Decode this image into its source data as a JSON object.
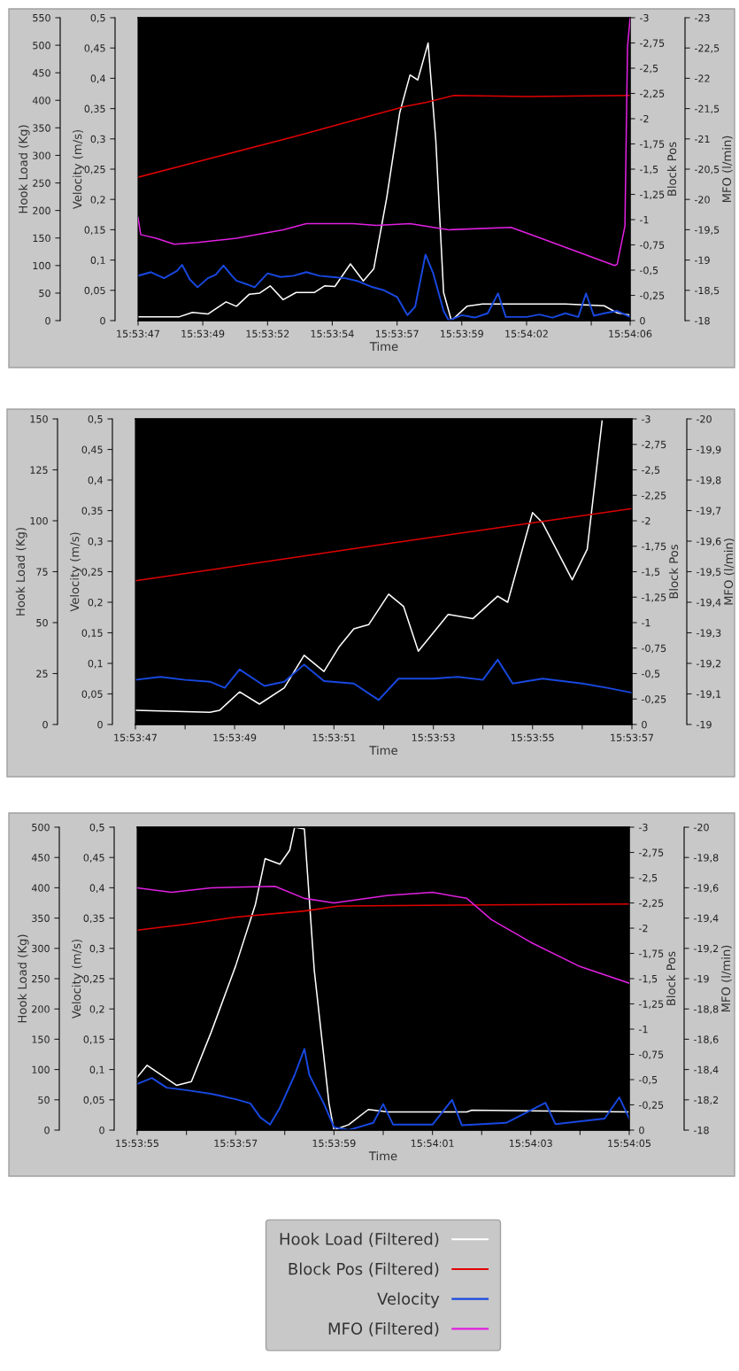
{
  "chart_data": [
    {
      "type": "line",
      "xlabel": "Time",
      "ylabel": "Hook Load (Kg)",
      "y2label": "Velocity (m/s)",
      "y3label": "Block Pos",
      "xlim": [
        15.896389,
        15.901667
      ],
      "xticks": [
        {
          "value": 15.896389,
          "label": "15:53:47"
        },
        {
          "value": 15.897083,
          "label": "15:53:49"
        },
        {
          "value": 15.897778,
          "label": "15:53:52"
        },
        {
          "value": 15.898472,
          "label": "15:53:54"
        },
        {
          "value": 15.899167,
          "label": "15:53:57"
        },
        {
          "value": 15.899861,
          "label": "15:53:59"
        },
        {
          "value": 15.900556,
          "label": "15:54:02"
        },
        {
          "value": 15.90125,
          "label": null
        },
        {
          "value": 15.901667,
          "label": "15:54:06"
        }
      ],
      "ylim": [
        0,
        550
      ],
      "yticks": [
        0,
        50,
        100,
        150,
        200,
        250,
        300,
        350,
        400,
        450,
        500,
        550
      ],
      "y2lim": [
        0,
        0.5
      ],
      "y2ticks": [
        0,
        {
          "value": 0.05,
          "label": "0,05"
        },
        {
          "value": 0.1,
          "label": "0,1"
        },
        {
          "value": 0.15,
          "label": "0,15"
        },
        {
          "value": 0.2,
          "label": "0,2"
        },
        {
          "value": 0.25,
          "label": "0,25"
        },
        {
          "value": 0.3,
          "label": "0,3"
        },
        {
          "value": 0.35,
          "label": "0,35"
        },
        {
          "value": 0.4,
          "label": "0,4"
        },
        {
          "value": 0.45,
          "label": "0,45"
        },
        {
          "value": 0.5,
          "label": "0,5"
        }
      ],
      "y3lim": [
        0,
        -3
      ],
      "y3ticks": [
        0,
        {
          "value": -0.25,
          "label": "-0,25"
        },
        {
          "value": -0.5,
          "label": "-0,5"
        },
        {
          "value": -0.75,
          "label": "-0,75"
        },
        {
          "value": -1,
          "label": "-1"
        },
        {
          "value": -1.25,
          "label": "-1,25"
        },
        {
          "value": -1.5,
          "label": "-1,5"
        },
        {
          "value": -1.75,
          "label": "-1,75"
        },
        {
          "value": -2,
          "label": "-2"
        },
        {
          "value": -2.25,
          "label": "-2,25"
        },
        {
          "value": -2.5,
          "label": "-2,5"
        },
        {
          "value": -2.75,
          "label": "-2,75"
        },
        {
          "value": -3,
          "label": "-3"
        }
      ],
      "series": [
        {
          "axis": "y3",
          "color": "#e00000",
          "x": [
            15.896389,
            15.897222,
            15.898056,
            15.898889,
            15.89925,
            15.899472,
            15.899778,
            15.900556,
            15.901667
          ],
          "values": [
            -1.42,
            -1.62,
            -1.82,
            -2.03,
            -2.12,
            -2.16,
            -2.23,
            -2.22,
            -2.23
          ]
        },
        {
          "axis": "y2",
          "color": "#1848e0",
          "x": [
            15.896389,
            15.896528,
            15.896667,
            15.896806,
            15.896861,
            15.896944,
            15.897027,
            15.897138,
            15.897222,
            15.897305,
            15.897389,
            15.897444,
            15.897556,
            15.897639,
            15.897778,
            15.897917,
            15.898056,
            15.898194,
            15.898333,
            15.898472,
            15.898611,
            15.89875,
            15.898889,
            15.899028,
            15.899167,
            15.899278,
            15.899361,
            15.899472,
            15.899555,
            15.899666,
            15.899722,
            15.899861,
            15.9,
            15.900139,
            15.90025,
            15.900333,
            15.900556,
            15.900694,
            15.900833,
            15.900972,
            15.901111,
            15.901194,
            15.901278,
            15.901389,
            15.901528,
            15.901667
          ],
          "values": [
            0.074,
            0.08,
            0.07,
            0.082,
            0.092,
            0.068,
            0.055,
            0.07,
            0.076,
            0.091,
            0.075,
            0.066,
            0.06,
            0.055,
            0.078,
            0.072,
            0.074,
            0.08,
            0.074,
            0.072,
            0.07,
            0.065,
            0.056,
            0.05,
            0.039,
            0.009,
            0.023,
            0.109,
            0.078,
            0.016,
            0,
            0.009,
            0.005,
            0.012,
            0.045,
            0.006,
            0.006,
            0.01,
            0.005,
            0.012,
            0.006,
            0.045,
            0.008,
            0.012,
            0.016,
            0.006
          ]
        },
        {
          "color": "#ffffff",
          "x": [
            15.896389,
            15.896834,
            15.896972,
            15.897138,
            15.897333,
            15.897444,
            15.897583,
            15.897694,
            15.897806,
            15.897945,
            15.898084,
            15.898278,
            15.898389,
            15.8985,
            15.898667,
            15.898805,
            15.898917,
            15.899056,
            15.899195,
            15.899306,
            15.899389,
            15.8995,
            15.899583,
            15.899666,
            15.89975,
            15.899916,
            15.900083,
            15.900972,
            15.901389,
            15.901528,
            15.901667
          ],
          "values": [
            7,
            7,
            15,
            12,
            34,
            26,
            48,
            50,
            63,
            38,
            51,
            51,
            63,
            62,
            103,
            72,
            94,
            223,
            377,
            446,
            437,
            504,
            326,
            51,
            0,
            26,
            30,
            30,
            27,
            14,
            10
          ]
        }
      ]
    },
    {
      "type": "line",
      "tick_labels": "y",
      "ylabel": "MFO (l/min)",
      "xlim": [
        15.896389,
        15.901667
      ],
      "ylim": [
        -18,
        -23
      ],
      "yticks": [
        {
          "value": -18,
          "label": "-18"
        },
        {
          "value": -18.5,
          "label": "-18,5"
        },
        {
          "value": -19,
          "label": "-19"
        },
        {
          "value": -19.5,
          "label": "-19,5"
        },
        {
          "value": -20,
          "label": "-20"
        },
        {
          "value": -20.5,
          "label": "-20,5"
        },
        {
          "value": -21,
          "label": "-21"
        },
        {
          "value": -21.5,
          "label": "-21,5"
        },
        {
          "value": -22,
          "label": "-22"
        },
        {
          "value": -22.5,
          "label": "-22,5"
        },
        {
          "value": -23,
          "label": "-23"
        }
      ],
      "series": [
        {
          "color": "#e020e0",
          "x": [
            15.896389,
            15.896417,
            15.896583,
            15.896778,
            15.897027,
            15.897444,
            15.897945,
            15.898194,
            15.898694,
            15.898945,
            15.899306,
            15.899722,
            15.900389,
            15.900639,
            15.9015,
            15.901528,
            15.901611,
            15.901639,
            15.901667
          ],
          "values": [
            -19.7,
            -19.42,
            -19.36,
            -19.26,
            -19.29,
            -19.36,
            -19.5,
            -19.6,
            -19.6,
            -19.57,
            -19.6,
            -19.5,
            -19.54,
            -19.4,
            -18.91,
            -18.93,
            -19.56,
            -22.52,
            -23
          ]
        }
      ]
    },
    {
      "type": "line",
      "xlabel": "Time",
      "ylabel": "Hook Load (Kg)",
      "y2label": "Velocity (m/s)",
      "y3label": "Block Pos",
      "xlim": [
        15.896389,
        15.899167
      ],
      "xticks": [
        {
          "value": 15.896389,
          "label": "15:53:47"
        },
        {
          "value": 15.896667,
          "label": null
        },
        {
          "value": 15.896944,
          "label": "15:53:49"
        },
        {
          "value": 15.897222,
          "label": null
        },
        {
          "value": 15.8975,
          "label": "15:53:51"
        },
        {
          "value": 15.897778,
          "label": null
        },
        {
          "value": 15.898056,
          "label": "15:53:53"
        },
        {
          "value": 15.898333,
          "label": null
        },
        {
          "value": 15.898611,
          "label": "15:53:55"
        },
        {
          "value": 15.898889,
          "label": null
        },
        {
          "value": 15.899167,
          "label": "15:53:57"
        }
      ],
      "ylim": [
        0,
        150
      ],
      "yticks": [
        0,
        25,
        50,
        75,
        100,
        125,
        150
      ],
      "y2lim": [
        0,
        0.5
      ],
      "y2ticks": [
        0,
        {
          "value": 0.05,
          "label": "0,05"
        },
        {
          "value": 0.1,
          "label": "0,1"
        },
        {
          "value": 0.15,
          "label": "0,15"
        },
        {
          "value": 0.2,
          "label": "0,2"
        },
        {
          "value": 0.25,
          "label": "0,25"
        },
        {
          "value": 0.3,
          "label": "0,3"
        },
        {
          "value": 0.35,
          "label": "0,35"
        },
        {
          "value": 0.4,
          "label": "0,4"
        },
        {
          "value": 0.45,
          "label": "0,45"
        },
        {
          "value": 0.5,
          "label": "0,5"
        }
      ],
      "y3lim": [
        0,
        -3
      ],
      "y3ticks": [
        0,
        {
          "value": -0.25,
          "label": "-0,25"
        },
        {
          "value": -0.5,
          "label": "-0,5"
        },
        {
          "value": -0.75,
          "label": "-0,75"
        },
        {
          "value": -1,
          "label": "-1"
        },
        {
          "value": -1.25,
          "label": "-1,25"
        },
        {
          "value": -1.5,
          "label": "-1,5"
        },
        {
          "value": -1.75,
          "label": "-1,75"
        },
        {
          "value": -2,
          "label": "-2"
        },
        {
          "value": -2.25,
          "label": "-2,25"
        },
        {
          "value": -2.5,
          "label": "-2,5"
        },
        {
          "value": -2.75,
          "label": "-2,75"
        },
        {
          "value": -3,
          "label": "-3"
        }
      ],
      "series": [
        {
          "axis": "y3",
          "color": "#e00000",
          "x": [
            15.896389,
            15.897778,
            15.899167
          ],
          "values": [
            -1.41,
            -1.77,
            -2.12
          ]
        },
        {
          "axis": "y2",
          "color": "#1848e0",
          "x": [
            15.896389,
            15.896528,
            15.896667,
            15.896806,
            15.896889,
            15.896972,
            15.897111,
            15.897222,
            15.897333,
            15.897444,
            15.897611,
            15.89775,
            15.897861,
            15.898056,
            15.898194,
            15.898333,
            15.898416,
            15.8985,
            15.898667,
            15.898889,
            15.899028,
            15.899167
          ],
          "values": [
            0.073,
            0.078,
            0.073,
            0.07,
            0.06,
            0.09,
            0.063,
            0.07,
            0.098,
            0.071,
            0.067,
            0.04,
            0.075,
            0.075,
            0.078,
            0.073,
            0.106,
            0.067,
            0.075,
            0.067,
            0.06,
            0.052
          ]
        },
        {
          "color": "#ffffff",
          "x": [
            15.896389,
            15.896806,
            15.896861,
            15.896972,
            15.897083,
            15.897222,
            15.897333,
            15.897444,
            15.897528,
            15.897611,
            15.897694,
            15.897806,
            15.897889,
            15.897972,
            15.898139,
            15.898278,
            15.898416,
            15.898472,
            15.898611,
            15.898667,
            15.898833,
            15.898917,
            15.899
          ],
          "values": [
            7,
            6,
            7,
            16,
            10,
            18,
            34,
            26,
            38,
            47,
            49,
            64,
            58,
            36,
            54,
            52,
            63,
            60,
            104,
            99,
            71,
            86,
            149
          ]
        }
      ]
    },
    {
      "type": "line",
      "tick_labels": "y",
      "ylabel": "MFO (l/min)",
      "xlim": [
        15.896389,
        15.899167
      ],
      "ylim": [
        -19,
        -20
      ],
      "yticks": [
        {
          "value": -19,
          "label": "-19"
        },
        {
          "value": -19.1,
          "label": "-19,1"
        },
        {
          "value": -19.2,
          "label": "-19,2"
        },
        {
          "value": -19.3,
          "label": "-19,3"
        },
        {
          "value": -19.4,
          "label": "-19,4"
        },
        {
          "value": -19.5,
          "label": "-19,5"
        },
        {
          "value": -19.6,
          "label": "-19,6"
        },
        {
          "value": -19.7,
          "label": "-19,7"
        },
        {
          "value": -19.8,
          "label": "-19,8"
        },
        {
          "value": -19.9,
          "label": "-19,9"
        },
        {
          "value": -20,
          "label": "-20"
        }
      ]
    },
    {
      "type": "line",
      "xlabel": "Time",
      "ylabel": "Hook Load (Kg)",
      "y2label": "Velocity (m/s)",
      "y3label": "Block Pos",
      "legend": "bottom",
      "xlim": [
        15.898611,
        15.901389
      ],
      "xticks": [
        {
          "value": 15.898611,
          "label": "15:53:55"
        },
        {
          "value": 15.898889,
          "label": null
        },
        {
          "value": 15.899167,
          "label": "15:53:57"
        },
        {
          "value": 15.899444,
          "label": null
        },
        {
          "value": 15.899722,
          "label": "15:53:59"
        },
        {
          "value": 15.9,
          "label": null
        },
        {
          "value": 15.900278,
          "label": "15:54:01"
        },
        {
          "value": 15.900556,
          "label": null
        },
        {
          "value": 15.900833,
          "label": "15:54:03"
        },
        {
          "value": 15.901111,
          "label": null
        },
        {
          "value": 15.901389,
          "label": "15:54:05"
        }
      ],
      "ylim": [
        0,
        500
      ],
      "yticks": [
        0,
        50,
        100,
        150,
        200,
        250,
        300,
        350,
        400,
        450,
        500
      ],
      "y2lim": [
        0,
        0.5
      ],
      "y2ticks": [
        0,
        {
          "value": 0.05,
          "label": "0,05"
        },
        {
          "value": 0.1,
          "label": "0,1"
        },
        {
          "value": 0.15,
          "label": "0,15"
        },
        {
          "value": 0.2,
          "label": "0,2"
        },
        {
          "value": 0.25,
          "label": "0,25"
        },
        {
          "value": 0.3,
          "label": "0,3"
        },
        {
          "value": 0.35,
          "label": "0,35"
        },
        {
          "value": 0.4,
          "label": "0,4"
        },
        {
          "value": 0.45,
          "label": "0,45"
        },
        {
          "value": 0.5,
          "label": "0,5"
        }
      ],
      "y3lim": [
        0,
        -3
      ],
      "y3ticks": [
        0,
        {
          "value": -0.25,
          "label": "-0,25"
        },
        {
          "value": -0.5,
          "label": "-0,5"
        },
        {
          "value": -0.75,
          "label": "-0,75"
        },
        {
          "value": -1,
          "label": "-1"
        },
        {
          "value": -1.25,
          "label": "-1,25"
        },
        {
          "value": -1.5,
          "label": "-1,5"
        },
        {
          "value": -1.75,
          "label": "-1,75"
        },
        {
          "value": -2,
          "label": "-2"
        },
        {
          "value": -2.25,
          "label": "-2,25"
        },
        {
          "value": -2.5,
          "label": "-2,5"
        },
        {
          "value": -2.75,
          "label": "-2,75"
        },
        {
          "value": -3,
          "label": "-3"
        }
      ],
      "series": [
        {
          "name": "Hook Load (Filtered)",
          "color": "#ffffff",
          "x": [
            15.898611,
            15.898667,
            15.898833,
            15.898917,
            15.899028,
            15.899167,
            15.899278,
            15.899333,
            15.899417,
            15.899472,
            15.8995,
            15.899555,
            15.899611,
            15.899694,
            15.899722,
            15.899805,
            15.899916,
            15.900028,
            15.900472,
            15.9005,
            15.901389
          ],
          "values": [
            87,
            107,
            74,
            80,
            161,
            271,
            372,
            448,
            439,
            462,
            500,
            497,
            263,
            44,
            0,
            9,
            34,
            30,
            30,
            33,
            30
          ]
        },
        {
          "name": "Block Pos (Filtered)",
          "axis": "y3",
          "color": "#e00000",
          "x": [
            15.898611,
            15.898889,
            15.899167,
            15.899555,
            15.89975,
            15.900556,
            15.901389
          ],
          "values": [
            -1.98,
            -2.04,
            -2.11,
            -2.17,
            -2.22,
            -2.23,
            -2.24
          ]
        },
        {
          "name": "Velocity",
          "axis": "y2",
          "color": "#1848e0",
          "x": [
            15.898611,
            15.898694,
            15.898778,
            15.898889,
            15.899028,
            15.899167,
            15.89925,
            15.899306,
            15.899361,
            15.899417,
            15.8995,
            15.899555,
            15.899583,
            15.899666,
            15.899722,
            15.899805,
            15.899944,
            15.9,
            15.900056,
            15.900278,
            15.900389,
            15.900444,
            15.900694,
            15.900916,
            15.900972,
            15.90125,
            15.901333,
            15.901389
          ],
          "values": [
            0.076,
            0.086,
            0.07,
            0.066,
            0.06,
            0.051,
            0.044,
            0.021,
            0.009,
            0.037,
            0.091,
            0.134,
            0.091,
            0.043,
            0.005,
            0,
            0.012,
            0.043,
            0.009,
            0.009,
            0.05,
            0.008,
            0.012,
            0.045,
            0.01,
            0.019,
            0.054,
            0.019
          ]
        }
      ]
    },
    {
      "type": "line",
      "tick_labels": "y",
      "ylabel": "MFO (l/min)",
      "xlim": [
        15.898611,
        15.901389
      ],
      "ylim": [
        -18,
        -20
      ],
      "yticks": [
        {
          "value": -18,
          "label": "-18"
        },
        {
          "value": -18.2,
          "label": "-18,2"
        },
        {
          "value": -18.4,
          "label": "-18,4"
        },
        {
          "value": -18.6,
          "label": "-18,6"
        },
        {
          "value": -18.8,
          "label": "-18,8"
        },
        {
          "value": -19,
          "label": "-19"
        },
        {
          "value": -19.2,
          "label": "-19,2"
        },
        {
          "value": -19.4,
          "label": "-19,4"
        },
        {
          "value": -19.6,
          "label": "-19,6"
        },
        {
          "value": -19.8,
          "label": "-19,8"
        },
        {
          "value": -20,
          "label": "-20"
        }
      ],
      "series": [
        {
          "name": "MFO (Filtered)",
          "color": "#e020e0",
          "x": [
            15.898611,
            15.898805,
            15.899028,
            15.899389,
            15.899555,
            15.899722,
            15.900028,
            15.900278,
            15.900472,
            15.900611,
            15.900833,
            15.901111,
            15.901389
          ],
          "values": [
            -19.6,
            -19.57,
            -19.6,
            -19.61,
            -19.53,
            -19.5,
            -19.55,
            -19.57,
            -19.53,
            -19.39,
            -19.24,
            -19.08,
            -18.97
          ]
        }
      ]
    }
  ]
}
